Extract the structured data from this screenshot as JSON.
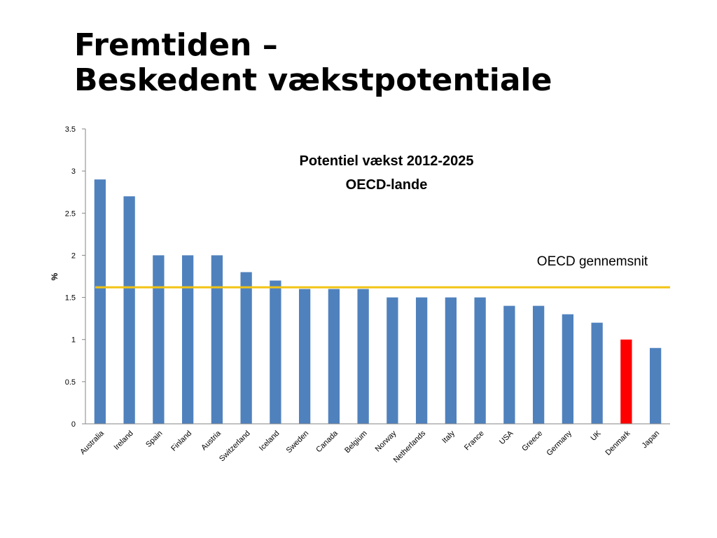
{
  "slide": {
    "title_line1": "Fremtiden –",
    "title_line2": "Beskedent vækstpotentiale"
  },
  "chart_data": {
    "type": "bar",
    "title_line1": "Potentiel vækst 2012-2025",
    "title_line2": "OECD-lande",
    "xlabel": "",
    "ylabel": "%",
    "ylim": [
      0,
      3.5
    ],
    "yticks": [
      0,
      0.5,
      1,
      1.5,
      2,
      2.5,
      3,
      3.5
    ],
    "ytick_labels": [
      "0",
      "0.5",
      "1",
      "1.5",
      "2",
      "2.5",
      "3",
      "3.5"
    ],
    "grid": false,
    "categories": [
      "Australia",
      "Ireland",
      "Spain",
      "Finland",
      "Austria",
      "Switzerland",
      "Iceland",
      "Sweden",
      "Canada",
      "Belgium",
      "Norway",
      "Netherlands",
      "Italy",
      "France",
      "USA",
      "Greece",
      "Germany",
      "UK",
      "Denmark",
      "Japan"
    ],
    "values": [
      2.9,
      2.7,
      2.0,
      2.0,
      2.0,
      1.8,
      1.7,
      1.6,
      1.6,
      1.6,
      1.5,
      1.5,
      1.5,
      1.5,
      1.4,
      1.4,
      1.3,
      1.2,
      1.0,
      0.9
    ],
    "colors": {
      "default": "#4F81BD",
      "highlight": "#FF0000",
      "average_line": "#F2C314"
    },
    "highlight_category": "Denmark",
    "reference_line": {
      "value": 1.62,
      "label": "OECD gennemsnit"
    }
  }
}
